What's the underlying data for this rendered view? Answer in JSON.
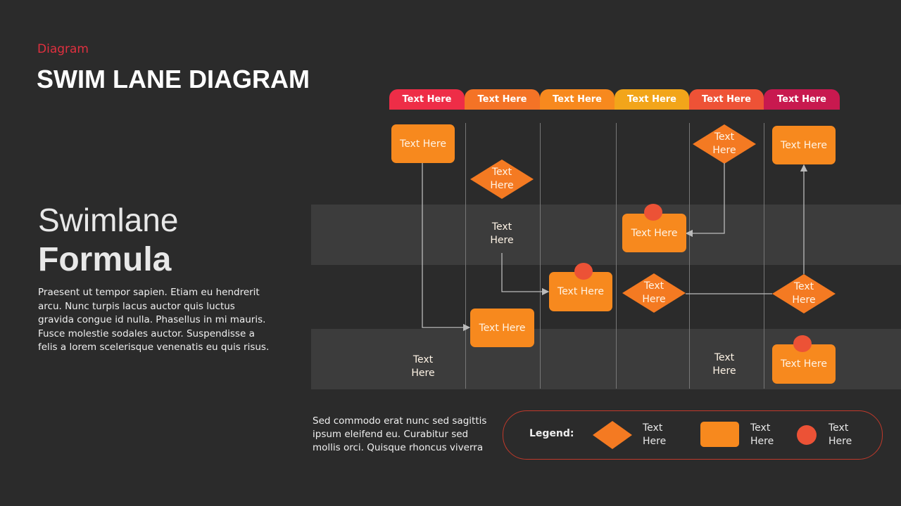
{
  "category": "Diagram",
  "title": "SWIM LANE DIAGRAM",
  "heading_light": "Swimlane",
  "heading_bold": "Formula",
  "body": "Praesent ut tempor  sapien. Etiam eu hendrerit arcu. Nunc turpis lacus auctor quis luctus gravida congue id nulla. Phasellus in mi mauris. Fusce molestie sodales auctor. Suspendisse a felis a lorem  scelerisque venenatis eu quis risus.",
  "footer_text": "Sed commodo  erat nunc sed sagittis ipsum eleifend eu. Curabitur sed mollis orci. Quisque rhoncus viverra",
  "lanes": [
    {
      "label": "Text Here",
      "color": "#ee2d47"
    },
    {
      "label": "Text Here",
      "color": "#f47326"
    },
    {
      "label": "Text Here",
      "color": "#f7891e"
    },
    {
      "label": "Text Here",
      "color": "#f2a51a"
    },
    {
      "label": "Text Here",
      "color": "#ee5236"
    },
    {
      "label": "Text Here",
      "color": "#c8194f"
    }
  ],
  "shapes": [
    {
      "type": "process",
      "text": "Text Here"
    },
    {
      "type": "decision",
      "line1": "Text",
      "line2": "Here"
    },
    {
      "type": "decision",
      "line1": "Text",
      "line2": "Here"
    },
    {
      "type": "process",
      "text": "Text Here"
    },
    {
      "type": "decision",
      "line1": "Text",
      "line2": "Here"
    },
    {
      "type": "process",
      "text": "Text Here",
      "marker": true
    },
    {
      "type": "process",
      "text": "Text Here",
      "marker": true
    },
    {
      "type": "decision",
      "line1": "Text",
      "line2": "Here"
    },
    {
      "type": "decision",
      "line1": "Text",
      "line2": "Here"
    },
    {
      "type": "process",
      "text": "Text Here"
    },
    {
      "type": "decision",
      "line1": "Text",
      "line2": "Here"
    },
    {
      "type": "decision",
      "line1": "Text",
      "line2": "Here"
    },
    {
      "type": "process",
      "text": "Text Here",
      "marker": true
    }
  ],
  "legend": {
    "label": "Legend:",
    "items": [
      {
        "shape": "diamond",
        "line1": "Text",
        "line2": "Here"
      },
      {
        "shape": "rounded-rect",
        "line1": "Text",
        "line2": "Here"
      },
      {
        "shape": "circle",
        "line1": "Text",
        "line2": "Here"
      }
    ]
  },
  "colors": {
    "background": "#2b2b2b",
    "band": "#3c3c3c",
    "process": "#f7891e",
    "decision": "#f47a22",
    "marker": "#ec5236",
    "accent": "#e0303f"
  }
}
